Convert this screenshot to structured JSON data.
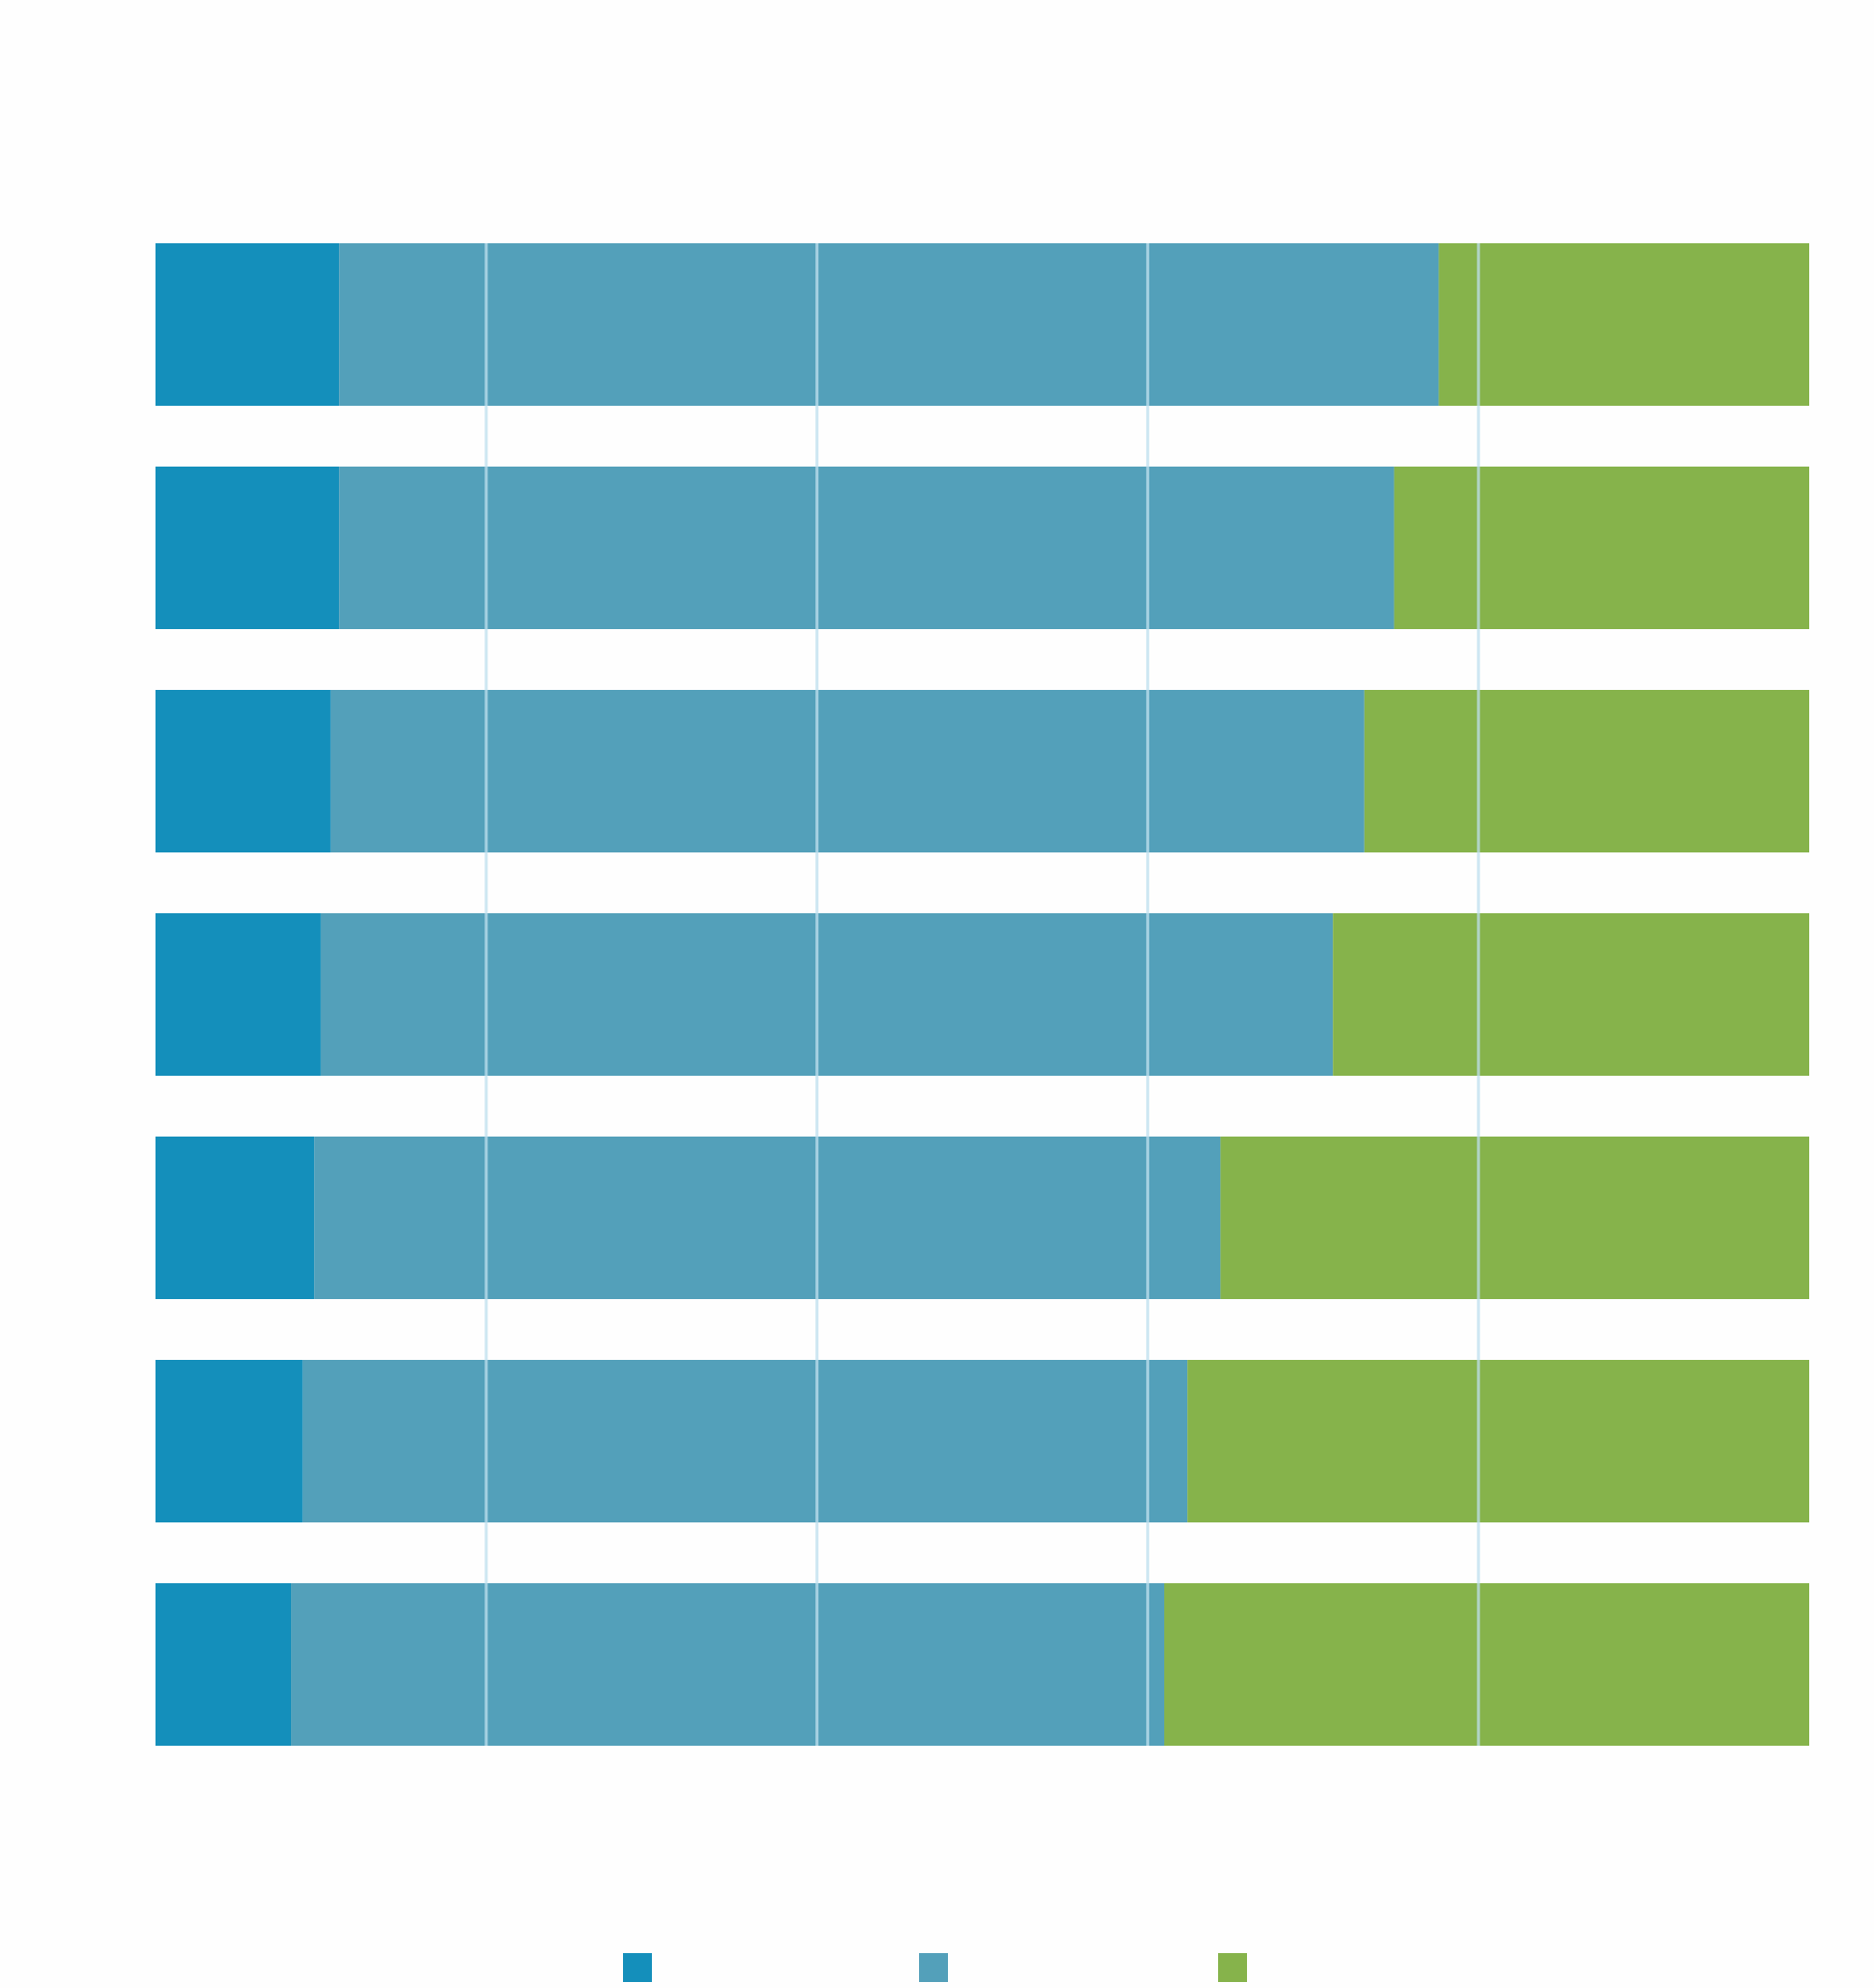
{
  "chart_data": {
    "type": "bar",
    "orientation": "horizontal",
    "stacked": true,
    "percent_stacked": true,
    "title": "",
    "xlabel": "",
    "ylabel": "",
    "categories": [
      "",
      "",
      "",
      "",
      "",
      "",
      ""
    ],
    "xlim": [
      0,
      100
    ],
    "grid": true,
    "legend_position": "bottom",
    "series": [
      {
        "values": [
          11.1,
          11.1,
          10.6,
          10.0,
          9.6,
          8.9,
          8.2
        ],
        "color": "#148fbb"
      },
      {
        "values": [
          66.5,
          63.8,
          62.5,
          61.2,
          54.8,
          53.5,
          52.8
        ],
        "color": "#53a0ba"
      },
      {
        "values": [
          22.4,
          25.1,
          26.9,
          28.8,
          35.6,
          37.6,
          39.0
        ],
        "color": "#86b34b"
      }
    ]
  }
}
